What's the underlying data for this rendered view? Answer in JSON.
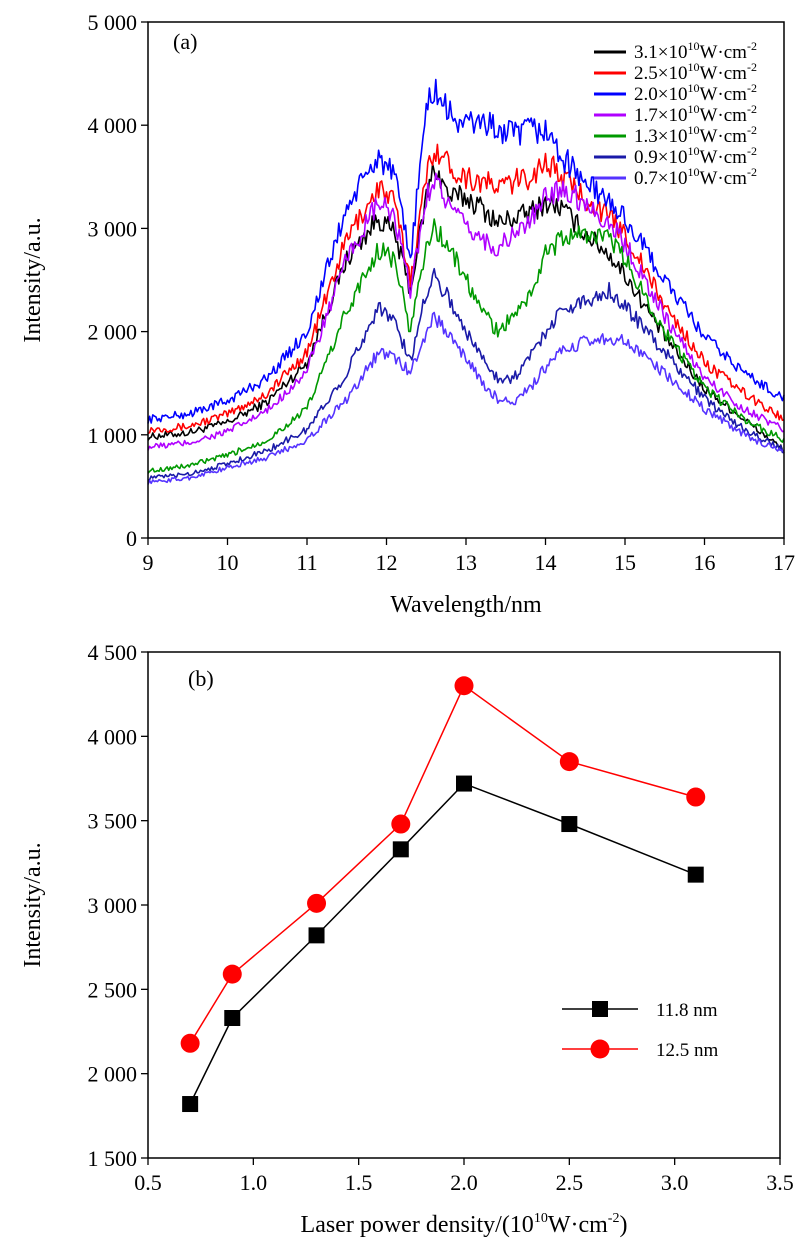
{
  "chart_data": [
    {
      "type": "line",
      "panel_label": "(a)",
      "xlabel": "Wavelength/nm",
      "ylabel": "Intensity/a.u.",
      "xlim": [
        9,
        17
      ],
      "ylim": [
        0,
        5000
      ],
      "xticks": [
        9,
        10,
        11,
        12,
        13,
        14,
        15,
        16,
        17
      ],
      "xtick_labels": [
        "9",
        "10",
        "11",
        "12",
        "13",
        "14",
        "15",
        "16",
        "17"
      ],
      "yticks": [
        0,
        1000,
        2000,
        3000,
        4000,
        5000
      ],
      "ytick_labels": [
        "0",
        "1 000",
        "2 000",
        "3 000",
        "4 000",
        "5 000"
      ],
      "grid": false,
      "legend_position": "top-right",
      "series": [
        {
          "name": "3.1×10¹⁰W·cm⁻²",
          "legend_main": "3.1×10",
          "legend_exp": "10",
          "legend_unit": "W·cm",
          "legend_unit_exp": "-2",
          "color": "#000000",
          "x": [
            9,
            9.5,
            10,
            10.5,
            11,
            11.5,
            11.9,
            12.1,
            12.3,
            12.5,
            12.6,
            12.8,
            13,
            13.2,
            13.4,
            13.6,
            13.8,
            14,
            14.2,
            14.5,
            14.8,
            15,
            15.5,
            16,
            16.5,
            17
          ],
          "y": [
            980,
            1020,
            1120,
            1320,
            1700,
            2700,
            3100,
            2950,
            2400,
            3300,
            3600,
            3300,
            3300,
            3200,
            3050,
            3100,
            3150,
            3250,
            3200,
            2950,
            2750,
            2550,
            1950,
            1450,
            1150,
            850
          ]
        },
        {
          "name": "2.5×10¹⁰W·cm⁻²",
          "legend_main": "2.5×10",
          "legend_exp": "10",
          "legend_unit": "W·cm",
          "legend_unit_exp": "-2",
          "color": "#ff0000",
          "x": [
            9,
            9.5,
            10,
            10.5,
            11,
            11.5,
            11.9,
            12.1,
            12.3,
            12.5,
            12.6,
            12.8,
            13,
            13.2,
            13.4,
            13.6,
            13.8,
            14,
            14.2,
            14.5,
            14.8,
            15,
            15.5,
            16,
            16.5,
            17
          ],
          "y": [
            1050,
            1080,
            1200,
            1400,
            1800,
            2900,
            3400,
            3250,
            2500,
            3500,
            3800,
            3600,
            3500,
            3450,
            3400,
            3450,
            3500,
            3650,
            3500,
            3300,
            3100,
            2950,
            2250,
            1700,
            1400,
            1150
          ]
        },
        {
          "name": "2.0×10¹⁰W·cm⁻²",
          "legend_main": "2.0×10",
          "legend_exp": "10",
          "legend_unit": "W·cm",
          "legend_unit_exp": "-2",
          "color": "#0000ff",
          "x": [
            9,
            9.5,
            10,
            10.5,
            11,
            11.5,
            11.9,
            12.1,
            12.3,
            12.5,
            12.6,
            12.8,
            13,
            13.2,
            13.4,
            13.6,
            13.8,
            14,
            14.2,
            14.5,
            14.8,
            15,
            15.5,
            16,
            16.5,
            17
          ],
          "y": [
            1150,
            1200,
            1330,
            1550,
            2000,
            3200,
            3700,
            3500,
            2700,
            4150,
            4350,
            4100,
            4000,
            4050,
            3950,
            3900,
            3950,
            3950,
            3700,
            3450,
            3250,
            3100,
            2500,
            1950,
            1600,
            1350
          ]
        },
        {
          "name": "1.7×10¹⁰W·cm⁻²",
          "legend_main": "1.7×10",
          "legend_exp": "10",
          "legend_unit": "W·cm",
          "legend_unit_exp": "-2",
          "color": "#b000ff",
          "x": [
            9,
            9.5,
            10,
            10.5,
            11,
            11.5,
            11.9,
            12.1,
            12.3,
            12.5,
            12.6,
            12.8,
            13,
            13.2,
            13.4,
            13.6,
            13.8,
            14,
            14.2,
            14.5,
            14.8,
            15,
            15.5,
            16,
            16.5,
            17
          ],
          "y": [
            880,
            920,
            1030,
            1230,
            1620,
            2700,
            3250,
            3100,
            2400,
            3300,
            3500,
            3200,
            3000,
            2900,
            2800,
            2950,
            3050,
            3300,
            3400,
            3250,
            3050,
            2850,
            2150,
            1550,
            1250,
            1050
          ]
        },
        {
          "name": "1.3×10¹⁰W·cm⁻²",
          "legend_main": "1.3×10",
          "legend_exp": "10",
          "legend_unit": "W·cm",
          "legend_unit_exp": "-2",
          "color": "#009900",
          "x": [
            9,
            9.5,
            10,
            10.5,
            11,
            11.5,
            11.9,
            12.1,
            12.3,
            12.5,
            12.6,
            12.8,
            13,
            13.2,
            13.4,
            13.6,
            13.8,
            14,
            14.2,
            14.5,
            14.8,
            15,
            15.5,
            16,
            16.5,
            17
          ],
          "y": [
            650,
            700,
            800,
            950,
            1250,
            2200,
            2800,
            2700,
            2000,
            2850,
            3000,
            2800,
            2500,
            2200,
            2000,
            2150,
            2350,
            2750,
            2900,
            2950,
            2900,
            2700,
            2000,
            1450,
            1150,
            950
          ]
        },
        {
          "name": "0.9×10¹⁰W·cm⁻²",
          "legend_main": "0.9×10",
          "legend_exp": "10",
          "legend_unit": "W·cm",
          "legend_unit_exp": "-2",
          "color": "#1a1aa8",
          "x": [
            9,
            9.5,
            10,
            10.5,
            11,
            11.5,
            11.9,
            12.1,
            12.3,
            12.5,
            12.6,
            12.8,
            13,
            13.2,
            13.4,
            13.6,
            13.8,
            14,
            14.2,
            14.5,
            14.8,
            15,
            15.5,
            16,
            16.5,
            17
          ],
          "y": [
            580,
            620,
            720,
            850,
            1050,
            1600,
            2250,
            2100,
            1700,
            2400,
            2550,
            2300,
            2000,
            1750,
            1550,
            1550,
            1750,
            2000,
            2200,
            2300,
            2400,
            2250,
            1800,
            1350,
            1050,
            850
          ]
        },
        {
          "name": "0.7×10¹⁰W·cm⁻²",
          "legend_main": "0.7×10",
          "legend_exp": "10",
          "legend_unit": "W·cm",
          "legend_unit_exp": "-2",
          "color": "#5533ff",
          "x": [
            9,
            9.5,
            10,
            10.5,
            11,
            11.5,
            11.9,
            12.1,
            12.3,
            12.5,
            12.6,
            12.8,
            13,
            13.2,
            13.4,
            13.6,
            13.8,
            14,
            14.2,
            14.5,
            14.8,
            15,
            15.5,
            16,
            16.5,
            17
          ],
          "y": [
            540,
            580,
            680,
            780,
            950,
            1350,
            1800,
            1750,
            1600,
            2000,
            2150,
            1950,
            1750,
            1500,
            1350,
            1300,
            1450,
            1650,
            1800,
            1900,
            1950,
            1900,
            1600,
            1250,
            1000,
            820
          ]
        }
      ]
    },
    {
      "type": "line",
      "panel_label": "(b)",
      "xlabel": "Laser power density/(10",
      "xlabel_exp": "10",
      "xlabel_unit": "W·cm",
      "xlabel_unit_exp": "-2",
      "xlabel_close": ")",
      "ylabel": "Intensity/a.u.",
      "xlim": [
        0.5,
        3.5
      ],
      "ylim": [
        1500,
        4500
      ],
      "xticks": [
        0.5,
        1.0,
        1.5,
        2.0,
        2.5,
        3.0,
        3.5
      ],
      "xtick_labels": [
        "0.5",
        "1.0",
        "1.5",
        "2.0",
        "2.5",
        "3.0",
        "3.5"
      ],
      "yticks": [
        1500,
        2000,
        2500,
        3000,
        3500,
        4000,
        4500
      ],
      "ytick_labels": [
        "1 500",
        "2 000",
        "2 500",
        "3 000",
        "3 500",
        "4 000",
        "4 500"
      ],
      "grid": false,
      "legend_position": "center-right",
      "series": [
        {
          "name": "11.8 nm",
          "marker": "square",
          "color": "#000000",
          "x": [
            0.7,
            0.9,
            1.3,
            1.7,
            2.0,
            2.5,
            3.1
          ],
          "y": [
            1820,
            2330,
            2820,
            3330,
            3720,
            3480,
            3180
          ]
        },
        {
          "name": "12.5 nm",
          "marker": "circle",
          "color": "#ff0000",
          "x": [
            0.7,
            0.9,
            1.3,
            1.7,
            2.0,
            2.5,
            3.1
          ],
          "y": [
            2180,
            2590,
            3010,
            3480,
            4300,
            3850,
            3640
          ]
        }
      ]
    }
  ]
}
